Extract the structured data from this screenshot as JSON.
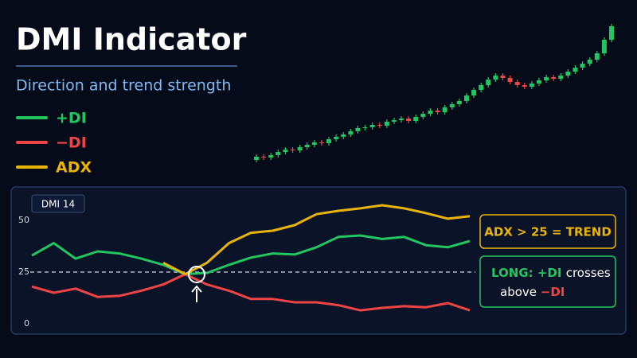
{
  "title": "DMI Indicator",
  "subtitle": "Direction and trend strength",
  "chart_data": [
    {
      "type": "candlestick",
      "up_color": "#22c55e",
      "down_color": "#ef4444",
      "ylim": [
        0,
        200
      ],
      "open": [
        14,
        18,
        17,
        20,
        24,
        27,
        26,
        30,
        33,
        36,
        35,
        40,
        43,
        46,
        50,
        54,
        55,
        58,
        57,
        62,
        64,
        66,
        63,
        68,
        72,
        76,
        74,
        80,
        84,
        88,
        95,
        102,
        108,
        115,
        120,
        117,
        112,
        108,
        106,
        110,
        114,
        118,
        116,
        120,
        125,
        130,
        135,
        140,
        148,
        165
      ],
      "close": [
        18,
        17,
        20,
        24,
        27,
        26,
        30,
        33,
        36,
        35,
        40,
        43,
        46,
        50,
        54,
        55,
        58,
        57,
        62,
        64,
        66,
        63,
        68,
        72,
        76,
        74,
        80,
        84,
        88,
        95,
        102,
        108,
        115,
        120,
        117,
        112,
        108,
        106,
        110,
        114,
        118,
        116,
        120,
        125,
        130,
        135,
        140,
        148,
        165,
        182
      ],
      "high": [
        21,
        21,
        23,
        27,
        30,
        30,
        33,
        36,
        39,
        39,
        43,
        46,
        49,
        53,
        57,
        58,
        61,
        61,
        65,
        67,
        69,
        69,
        71,
        75,
        79,
        79,
        83,
        87,
        91,
        98,
        105,
        111,
        118,
        123,
        123,
        120,
        115,
        111,
        113,
        117,
        121,
        121,
        123,
        128,
        133,
        138,
        143,
        151,
        168,
        185
      ],
      "low": [
        11,
        14,
        14,
        17,
        21,
        23,
        23,
        27,
        30,
        32,
        32,
        37,
        40,
        43,
        47,
        51,
        52,
        54,
        54,
        59,
        61,
        60,
        60,
        65,
        69,
        71,
        71,
        77,
        81,
        85,
        92,
        99,
        105,
        112,
        114,
        109,
        105,
        103,
        103,
        107,
        111,
        113,
        113,
        117,
        122,
        127,
        132,
        137,
        145,
        162
      ]
    },
    {
      "type": "line",
      "label": "DMI 14",
      "x": [
        0,
        1,
        2,
        3,
        4,
        5,
        6,
        7,
        8,
        9,
        10,
        11,
        12,
        13,
        14,
        15,
        16,
        17,
        18,
        19,
        20
      ],
      "xlim": [
        0,
        20
      ],
      "ylim": [
        0,
        62
      ],
      "yticks": [
        0,
        25,
        50
      ],
      "reference_line": 25,
      "series": [
        {
          "name": "+DI",
          "color": "#22c55e",
          "values": [
            33,
            39,
            31.5,
            35,
            34,
            31.5,
            28.5,
            24,
            24.6,
            28.5,
            32,
            34,
            33.5,
            37,
            42,
            42.7,
            41,
            42,
            38,
            37,
            40
          ]
        },
        {
          "name": "−DI",
          "color": "#ef4444",
          "values": [
            18,
            15,
            17,
            13,
            13.5,
            16,
            19,
            24,
            19,
            16,
            12,
            12,
            10.4,
            10.4,
            9,
            6.5,
            7.7,
            8.5,
            8,
            10,
            6.5
          ]
        },
        {
          "name": "ADX",
          "color": "#eab308",
          "values": [
            null,
            null,
            null,
            null,
            null,
            null,
            29.5,
            24,
            29.5,
            39,
            44,
            45,
            47.7,
            53,
            54.6,
            55.8,
            57.3,
            55.8,
            53.5,
            50.8,
            52
          ]
        }
      ],
      "annotations": [
        "ADX > 25 = TREND",
        {
          "parts": [
            "LONG: +DI",
            "crosses",
            "above",
            "−DI"
          ]
        }
      ]
    }
  ]
}
